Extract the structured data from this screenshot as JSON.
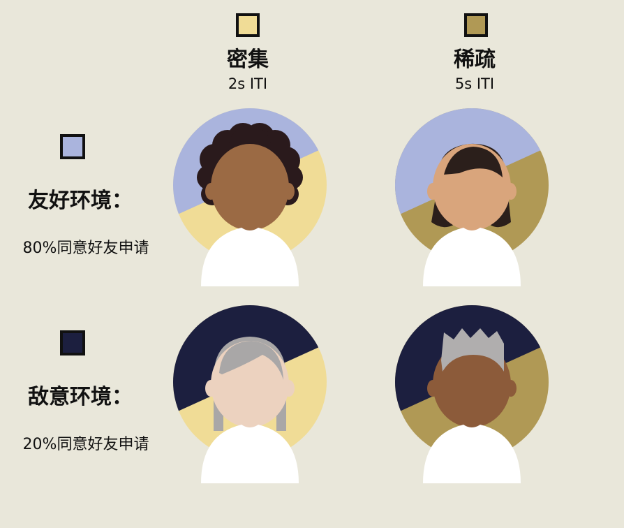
{
  "colors": {
    "background": "#e9e7da",
    "dense": "#f0dc96",
    "sparse": "#b09955",
    "friendly": "#aab4dd",
    "hostile": "#1c1f3f"
  },
  "columns": [
    {
      "title": "密集",
      "subtitle": "2s ITI",
      "color": "#f0dc96"
    },
    {
      "title": "稀疏",
      "subtitle": "5s ITI",
      "color": "#b09955"
    }
  ],
  "rows": [
    {
      "title": "友好环境：",
      "subtitle": "80%同意好友申请",
      "color": "#aab4dd"
    },
    {
      "title": "敌意环境：",
      "subtitle": "20%同意好友申请",
      "color": "#1c1f3f"
    }
  ],
  "avatars": [
    {
      "name": "avatar-curly-hair",
      "row": 0,
      "col": 0,
      "skin": "#9b6a44",
      "hair": "#2a1a1c",
      "hair_style": "curly"
    },
    {
      "name": "avatar-bob-hair",
      "row": 0,
      "col": 1,
      "skin": "#d9a57c",
      "hair": "#2b1f1b",
      "hair_style": "bob"
    },
    {
      "name": "avatar-long-gray-hair",
      "row": 1,
      "col": 0,
      "skin": "#ecd2bf",
      "hair": "#a9a7a7",
      "hair_style": "long"
    },
    {
      "name": "avatar-short-gray-hair",
      "row": 1,
      "col": 1,
      "skin": "#8c5b3a",
      "hair": "#b0aeae",
      "hair_style": "short"
    }
  ]
}
